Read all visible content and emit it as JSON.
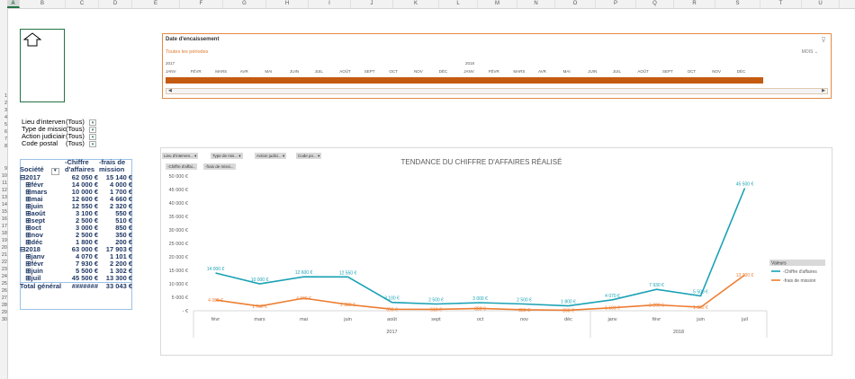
{
  "columns": [
    "A",
    "B",
    "C",
    "D",
    "E",
    "F",
    "G",
    "H",
    "I",
    "J",
    "K",
    "L",
    "M",
    "N",
    "O",
    "P",
    "Q",
    "R",
    "S",
    "T",
    "U"
  ],
  "selected_column": "A",
  "rows": [
    "1",
    "2",
    "3",
    "4",
    "5",
    "6",
    "7",
    "8",
    "9",
    "10",
    "11",
    "12",
    "13",
    "14",
    "15",
    "16",
    "17",
    "18",
    "19",
    "20",
    "21",
    "22",
    "23",
    "24",
    "25",
    "26",
    "27",
    "28",
    "29",
    "30"
  ],
  "timeline": {
    "title": "Date d'encaissement",
    "all_periods": "Toutes les périodes",
    "level": "MOIS",
    "year_2017": "2017",
    "year_2018": "2018",
    "months": [
      "JANV",
      "FÉVR",
      "MARS",
      "AVR",
      "MAI",
      "JUIN",
      "JUIL",
      "AOÛT",
      "SEPT",
      "OCT",
      "NOV",
      "DÉC",
      "JANV",
      "FÉVR",
      "MARS",
      "AVR",
      "MAI",
      "JUIN",
      "JUIL",
      "AOÛT",
      "SEPT",
      "OCT",
      "NOV",
      "DÉC"
    ]
  },
  "filters": [
    {
      "label": "Lieu d'interven",
      "value": "(Tous)"
    },
    {
      "label": "Type de missic",
      "value": "(Tous)"
    },
    {
      "label": "Action judiciair",
      "value": "(Tous)"
    },
    {
      "label": "Code postal",
      "value": "(Tous)"
    }
  ],
  "pivot": {
    "header": {
      "c1": "Société",
      "c2a": "-Chiffre",
      "c2b": "d'affaires",
      "c3a": "-frais de",
      "c3b": "mission"
    },
    "rows": [
      {
        "label": "⊟2017",
        "ca": "62 050 €",
        "fm": "15 140 €"
      },
      {
        "label": "  ⊞févr",
        "ca": "14 000 €",
        "fm": "4 000 €"
      },
      {
        "label": "  ⊞mars",
        "ca": "10 000 €",
        "fm": "1 700 €"
      },
      {
        "label": "  ⊞mai",
        "ca": "12 600 €",
        "fm": "4 660 €"
      },
      {
        "label": "  ⊞juin",
        "ca": "12 550 €",
        "fm": "2 320 €"
      },
      {
        "label": "  ⊞août",
        "ca": "3 100 €",
        "fm": "550 €"
      },
      {
        "label": "  ⊞sept",
        "ca": "2 500 €",
        "fm": "510 €"
      },
      {
        "label": "  ⊞oct",
        "ca": "3 000 €",
        "fm": "850 €"
      },
      {
        "label": "  ⊞nov",
        "ca": "2 500 €",
        "fm": "350 €"
      },
      {
        "label": "  ⊞déc",
        "ca": "1 800 €",
        "fm": "200 €"
      },
      {
        "label": "⊟2018",
        "ca": "63 000 €",
        "fm": "17 903 €"
      },
      {
        "label": "  ⊞janv",
        "ca": "4 070 €",
        "fm": "1 101 €"
      },
      {
        "label": "  ⊞févr",
        "ca": "7 930 €",
        "fm": "2 200 €"
      },
      {
        "label": "  ⊞juin",
        "ca": "5 500 €",
        "fm": "1 302 €"
      },
      {
        "label": "  ⊞juil",
        "ca": "45 500 €",
        "fm": "13 300 €"
      },
      {
        "label": "Total général",
        "ca": "#######",
        "fm": "33 043 €"
      }
    ]
  },
  "chart_chips": [
    "Lieu d'interven...",
    "Type de mis...",
    "Action judici...",
    "Code po..."
  ],
  "chart_value_chips": [
    "-Chiffre d'affai...",
    "-frais de missi..."
  ],
  "colors": {
    "series1": "#1aa2b5",
    "series2": "#ed7d31",
    "pivot_text": "#1f3864",
    "timeline_bar": "#c55a11"
  },
  "chart_data": {
    "type": "line",
    "title": "TENDANCE DU CHIFFRE D'AFFAIRES RÉALISÉ",
    "categories": [
      "févr",
      "mars",
      "mai",
      "juin",
      "août",
      "sept",
      "oct",
      "nov",
      "déc",
      "janv",
      "févr",
      "juin",
      "juil"
    ],
    "groups": [
      {
        "label": "2017",
        "count": 9
      },
      {
        "label": "2018",
        "count": 4
      }
    ],
    "ylim": [
      0,
      50000
    ],
    "yticks": [
      "- €",
      "5 000 €",
      "10 000 €",
      "15 000 €",
      "20 000 €",
      "25 000 €",
      "30 000 €",
      "35 000 €",
      "40 000 €",
      "45 000 €",
      "50 000 €"
    ],
    "series": [
      {
        "name": "-Chiffre d'affaires",
        "values": [
          14000,
          10000,
          12600,
          12550,
          3100,
          2500,
          3000,
          2500,
          1800,
          4070,
          7930,
          5500,
          45500
        ],
        "labels": [
          "14 000 €",
          "10 000 €",
          "12 600 €",
          "12 550 €",
          "3 100 €",
          "2 500 €",
          "3 000 €",
          "2 500 €",
          "1 800 €",
          "4 070 €",
          "7 930 €",
          "5 500 €",
          "45 500 €"
        ]
      },
      {
        "name": "-frais de mission",
        "values": [
          4000,
          1700,
          4660,
          2320,
          550,
          510,
          850,
          350,
          200,
          1101,
          2200,
          1302,
          13300
        ],
        "labels": [
          "4 000 €",
          "1 700 €",
          "4 660 €",
          "2 320 €",
          "550 €",
          "510 €",
          "850 €",
          "350 €",
          "200 €",
          "1 101 €",
          "2 200 €",
          "1 302 €",
          "13 300 €"
        ]
      }
    ],
    "legend_title": "Valeurs",
    "legend_position": "right",
    "grid": false
  }
}
